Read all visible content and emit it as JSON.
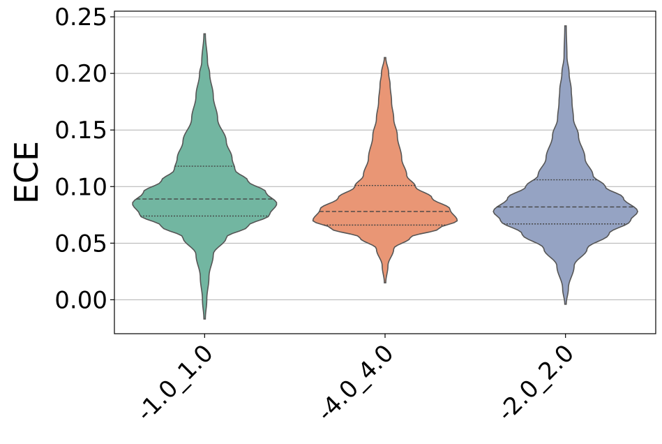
{
  "chart_data": {
    "type": "violin",
    "ylabel": "ECE",
    "xlabel": "",
    "ylim": [
      -0.03,
      0.255
    ],
    "yticks": [
      0.0,
      0.05,
      0.1,
      0.15,
      0.2,
      0.25
    ],
    "ytick_labels": [
      "0.00",
      "0.05",
      "0.10",
      "0.15",
      "0.20",
      "0.25"
    ],
    "grid": "horizontal",
    "categories": [
      "-1.0_1.0",
      "-4.0_4.0",
      "-2.0_2.0"
    ],
    "colors": [
      "#72b6a1",
      "#e99675",
      "#95a3c3"
    ],
    "outline_color": "#555555",
    "series": [
      {
        "category": "-1.0_1.0",
        "min": -0.017,
        "max": 0.235,
        "q1": 0.074,
        "median": 0.089,
        "q3": 0.118,
        "profile": [
          [
            -0.017,
            0.01
          ],
          [
            0.0,
            0.03
          ],
          [
            0.02,
            0.06
          ],
          [
            0.04,
            0.12
          ],
          [
            0.055,
            0.3
          ],
          [
            0.065,
            0.6
          ],
          [
            0.075,
            0.9
          ],
          [
            0.085,
            1.0
          ],
          [
            0.095,
            0.85
          ],
          [
            0.105,
            0.6
          ],
          [
            0.115,
            0.42
          ],
          [
            0.125,
            0.38
          ],
          [
            0.14,
            0.3
          ],
          [
            0.16,
            0.18
          ],
          [
            0.18,
            0.12
          ],
          [
            0.2,
            0.07
          ],
          [
            0.21,
            0.04
          ],
          [
            0.235,
            0.01
          ]
        ]
      },
      {
        "category": "-4.0_4.0",
        "min": 0.015,
        "max": 0.214,
        "q1": 0.066,
        "median": 0.078,
        "q3": 0.101,
        "profile": [
          [
            0.015,
            0.01
          ],
          [
            0.03,
            0.04
          ],
          [
            0.045,
            0.12
          ],
          [
            0.055,
            0.35
          ],
          [
            0.063,
            0.75
          ],
          [
            0.07,
            1.0
          ],
          [
            0.08,
            0.9
          ],
          [
            0.09,
            0.65
          ],
          [
            0.1,
            0.42
          ],
          [
            0.11,
            0.3
          ],
          [
            0.125,
            0.23
          ],
          [
            0.145,
            0.17
          ],
          [
            0.16,
            0.12
          ],
          [
            0.175,
            0.09
          ],
          [
            0.19,
            0.07
          ],
          [
            0.2,
            0.05
          ],
          [
            0.214,
            0.01
          ]
        ]
      },
      {
        "category": "-2.0_2.0",
        "min": -0.004,
        "max": 0.242,
        "q1": 0.067,
        "median": 0.082,
        "q3": 0.106,
        "profile": [
          [
            -0.004,
            0.01
          ],
          [
            0.01,
            0.04
          ],
          [
            0.03,
            0.12
          ],
          [
            0.045,
            0.3
          ],
          [
            0.058,
            0.6
          ],
          [
            0.07,
            0.9
          ],
          [
            0.078,
            1.0
          ],
          [
            0.09,
            0.8
          ],
          [
            0.1,
            0.55
          ],
          [
            0.11,
            0.38
          ],
          [
            0.125,
            0.27
          ],
          [
            0.145,
            0.18
          ],
          [
            0.16,
            0.11
          ],
          [
            0.175,
            0.09
          ],
          [
            0.185,
            0.08
          ],
          [
            0.2,
            0.05
          ],
          [
            0.215,
            0.02
          ],
          [
            0.242,
            0.01
          ]
        ]
      }
    ]
  }
}
